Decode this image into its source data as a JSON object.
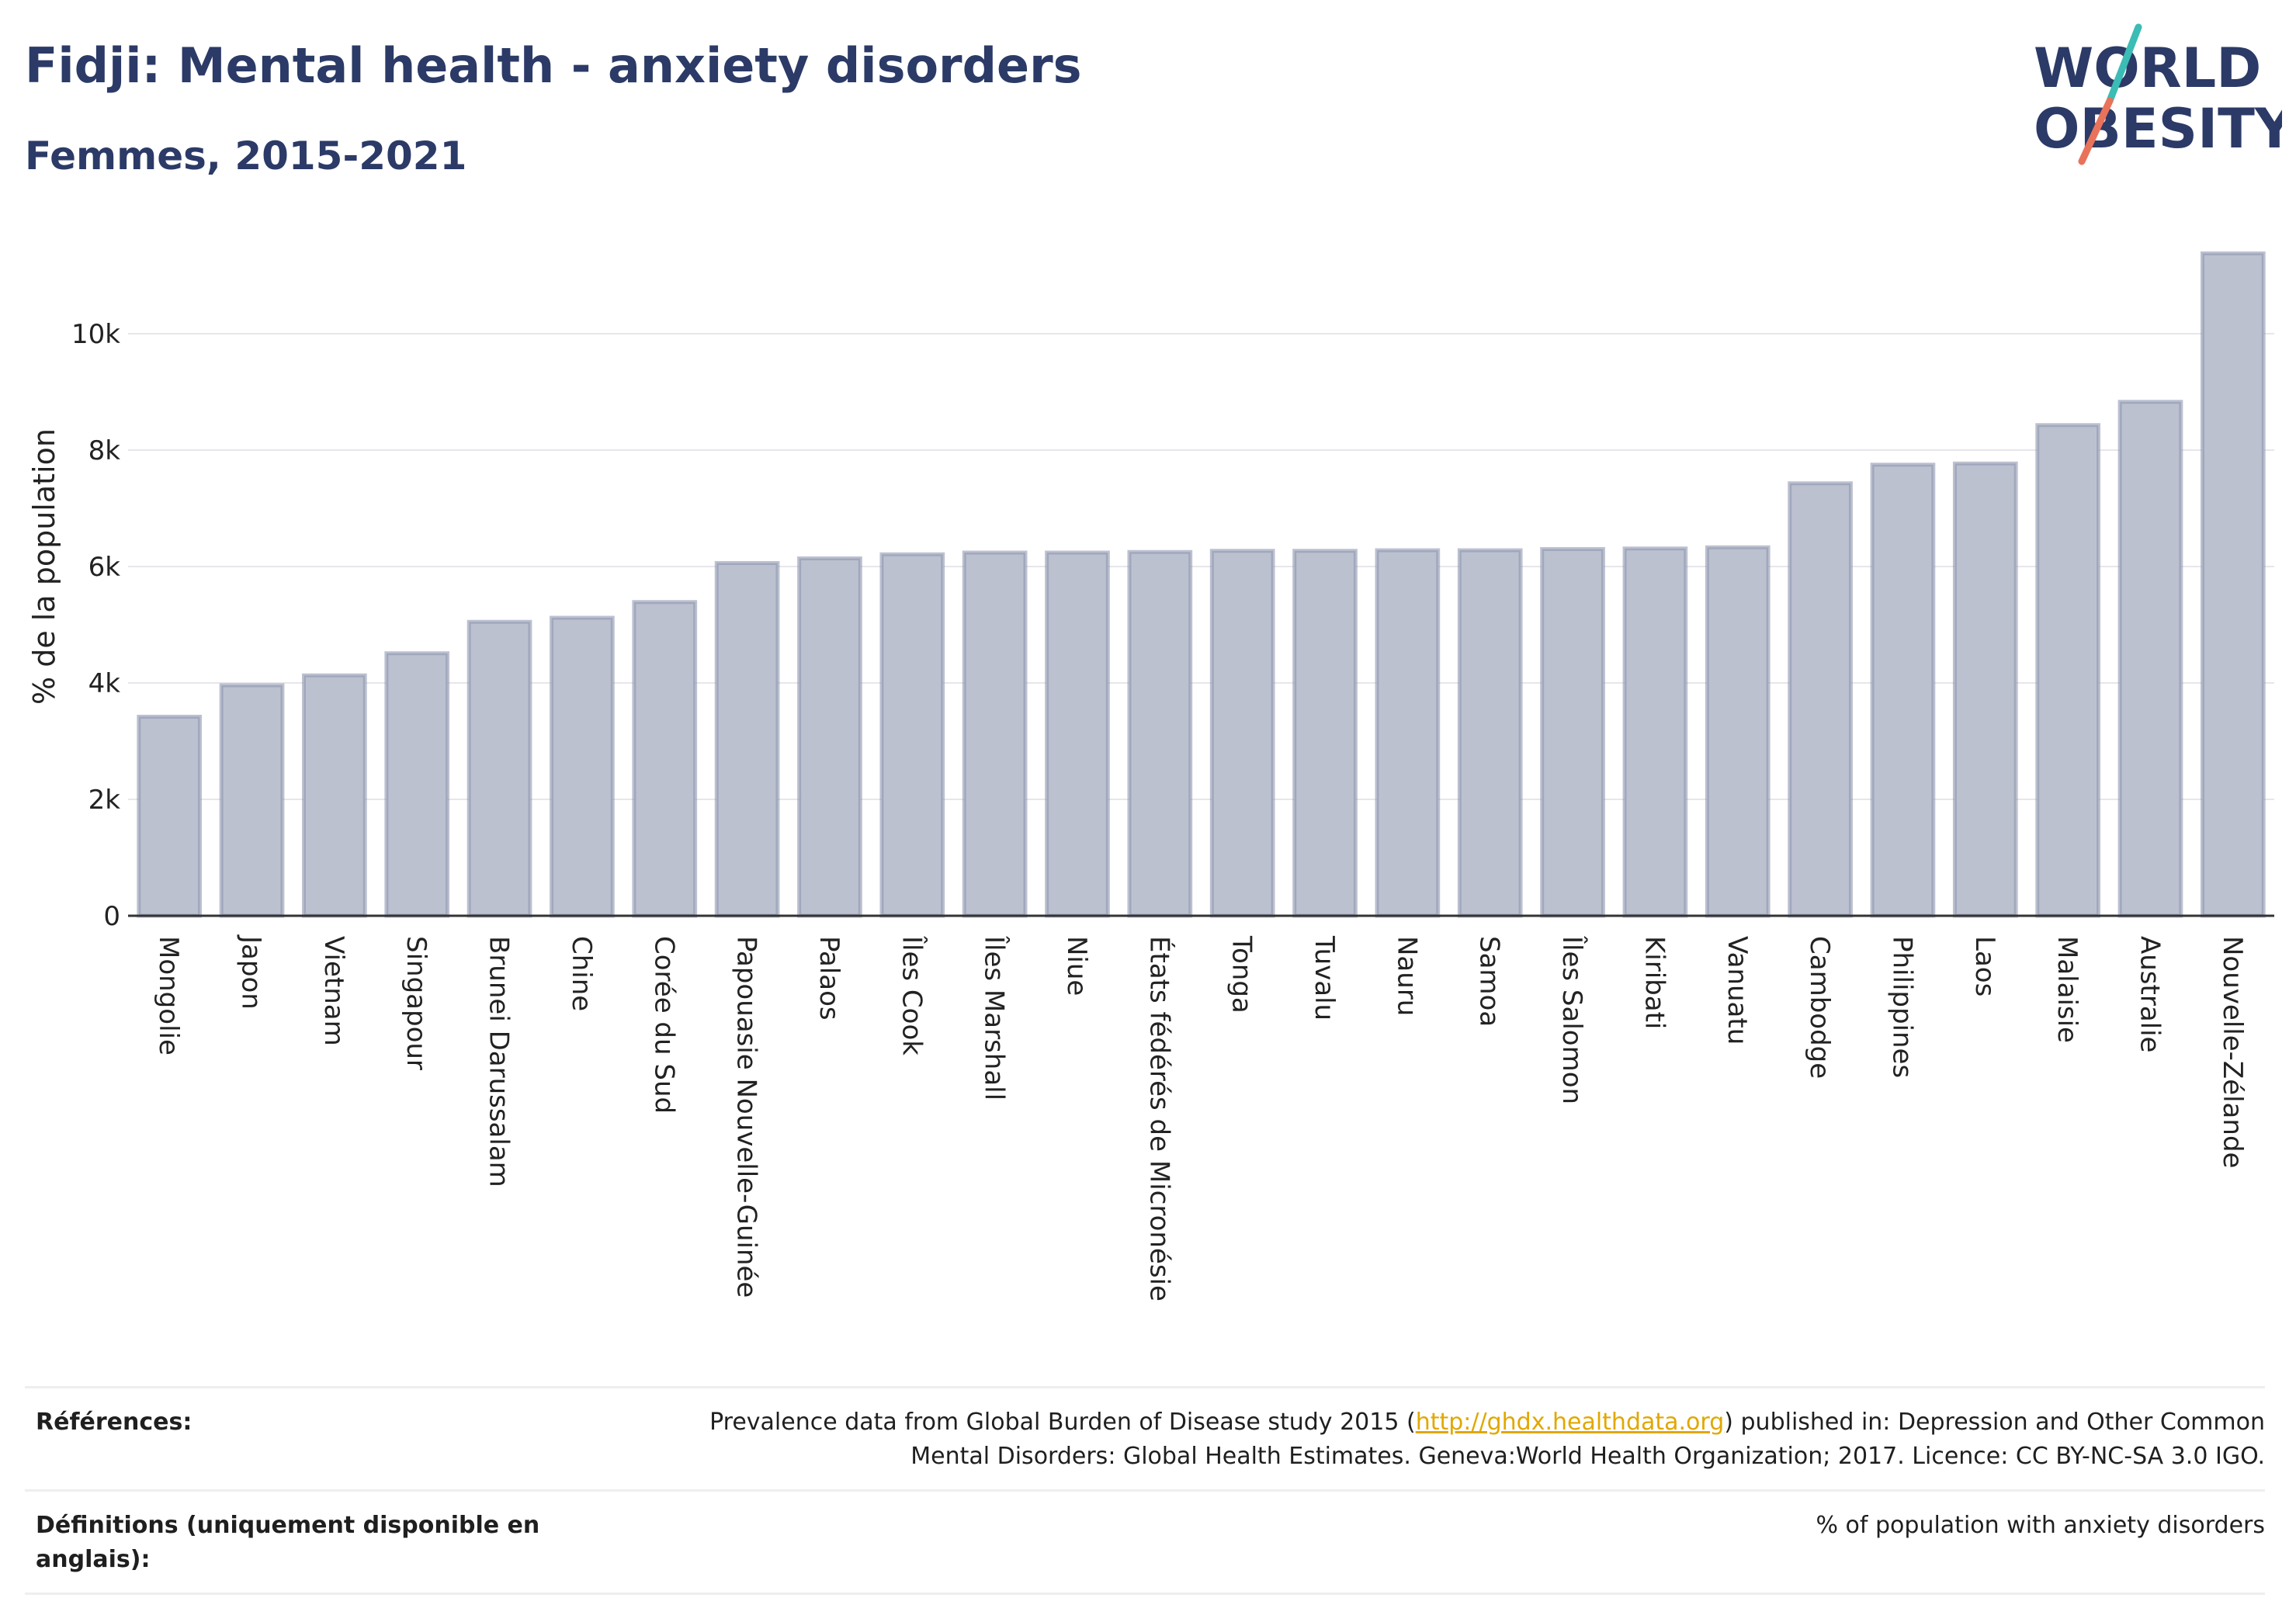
{
  "title": "Fidji: Mental health - anxiety disorders",
  "subtitle": "Femmes, 2015-2021",
  "logo": {
    "line1": "WORLD",
    "line2": "OBESITY",
    "colors": {
      "text": "#2b3a67",
      "accent1": "#e8735a",
      "accent2": "#3bbcb4"
    }
  },
  "chart_data": {
    "type": "bar",
    "ylabel": "% de la population",
    "ylim": [
      0,
      12000
    ],
    "yticks": [
      0,
      2000,
      4000,
      6000,
      8000,
      10000
    ],
    "ytick_labels": [
      "0",
      "2k",
      "4k",
      "6k",
      "8k",
      "10k"
    ],
    "grid": true,
    "bar_color": "#bcc1d0",
    "bar_edge_color": "#8f97b0",
    "categories": [
      "Mongolie",
      "Japon",
      "Vietnam",
      "Singapour",
      "Brunei Darussalam",
      "Chine",
      "Corée du Sud",
      "Papouasie Nouvelle-Guinée",
      "Palaos",
      "Îles Cook",
      "Îles Marshall",
      "Niue",
      "États fédérés de Micronésie",
      "Tonga",
      "Tuvalu",
      "Nauru",
      "Samoa",
      "Îles Salomon",
      "Kiribati",
      "Vanuatu",
      "Cambodge",
      "Philippines",
      "Laos",
      "Malaisie",
      "Australie",
      "Nouvelle-Zélande"
    ],
    "values": [
      3420,
      3960,
      4130,
      4510,
      5050,
      5120,
      5390,
      6060,
      6140,
      6210,
      6240,
      6240,
      6250,
      6270,
      6270,
      6280,
      6280,
      6300,
      6310,
      6330,
      7430,
      7750,
      7770,
      8430,
      8830,
      11380
    ]
  },
  "references": {
    "label": "Références:",
    "text_before": "Prevalence data from Global Burden of Disease study 2015 (",
    "link": "http://ghdx.healthdata.org",
    "text_after": ") published in: Depression and Other Common Mental Disorders: Global Health Estimates. Geneva:World Health Organization; 2017. Licence: CC BY-NC-SA 3.0 IGO."
  },
  "definitions": {
    "label": "Définitions (uniquement disponible en anglais):",
    "text": "% of population with anxiety disorders"
  }
}
